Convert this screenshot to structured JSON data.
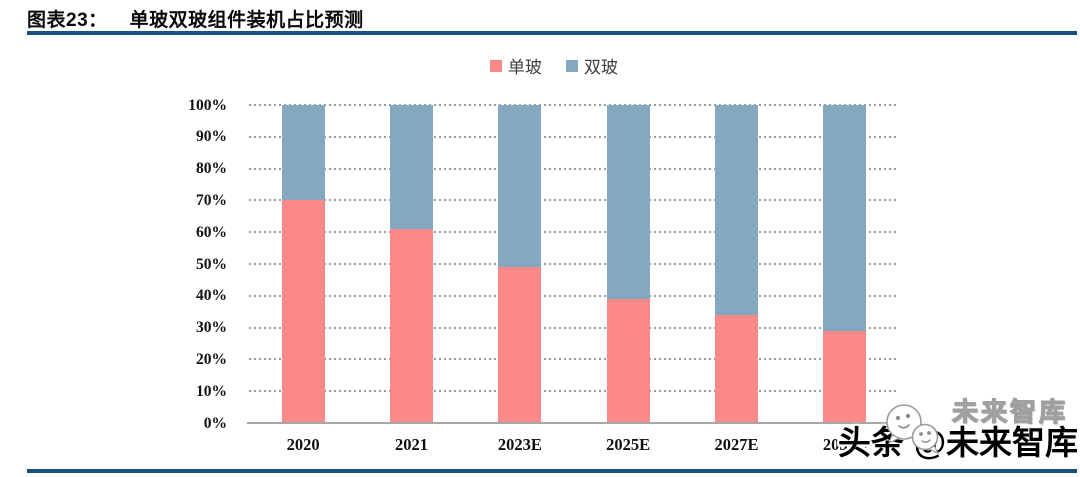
{
  "header": {
    "figure_label": "图表23：",
    "title": "单玻双玻组件装机占比预测"
  },
  "legend": {
    "items": [
      {
        "label": "单玻",
        "color": "#fb8989"
      },
      {
        "label": "双玻",
        "color": "#85a7c0"
      }
    ]
  },
  "watermark": {
    "platform": "头条",
    "handle": "@未来智库",
    "ghost": "未来智库",
    "icon": "chat-bubbles-icon"
  },
  "colors": {
    "single_glass": "#fb8989",
    "double_glass": "#85a7c0",
    "rule_navy": "#1b5180",
    "axis_gray": "#a6a6a6",
    "grid_gray": "#9c9c9c"
  },
  "chart_data": {
    "type": "bar",
    "stacked": true,
    "title": "单玻双玻组件装机占比预测",
    "categories": [
      "2020",
      "2021",
      "2023E",
      "2025E",
      "2027E",
      "2030E"
    ],
    "series": [
      {
        "name": "单玻",
        "color": "#fb8989",
        "values": [
          70,
          61,
          49,
          39,
          34,
          29
        ]
      },
      {
        "name": "双玻",
        "color": "#85a7c0",
        "values": [
          30,
          39,
          51,
          61,
          66,
          71
        ]
      }
    ],
    "values_unit": "%",
    "xlabel": "",
    "ylabel": "",
    "ylim": [
      0,
      100
    ],
    "ytick_values": [
      0,
      10,
      20,
      30,
      40,
      50,
      60,
      70,
      80,
      90,
      100
    ],
    "ytick_labels": [
      "0%",
      "10%",
      "20%",
      "30%",
      "40%",
      "50%",
      "60%",
      "70%",
      "80%",
      "90%",
      "100%"
    ],
    "grid": "horizontal-dotted",
    "legend_position": "top-center"
  }
}
